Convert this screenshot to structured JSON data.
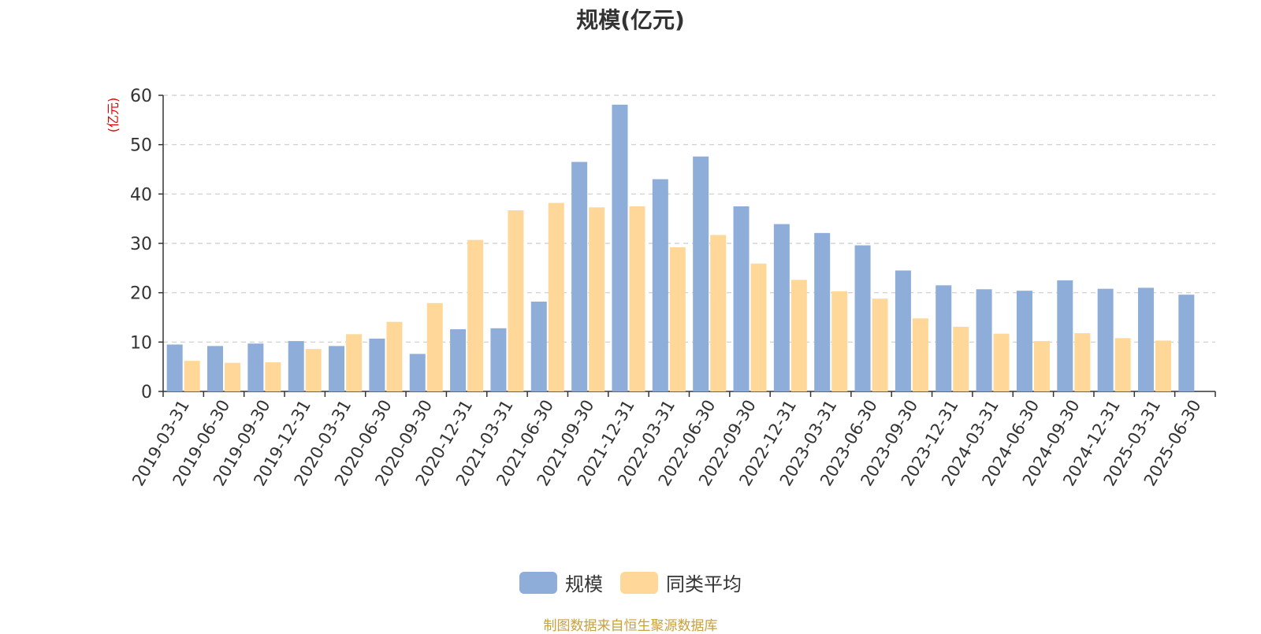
{
  "title": "规模(亿元)",
  "source_note": "制图数据来自恒生聚源数据库",
  "colors": {
    "scale": "#8eadd9",
    "peer_avg": "#ffd899",
    "axis": "#333333",
    "grid": "#cccccc",
    "unit_label": "#e00000"
  },
  "chart_data": {
    "type": "bar",
    "title": "规模(亿元)",
    "ylabel": "(亿元)",
    "xlabel": "",
    "ylim": [
      0,
      60
    ],
    "yticks": [
      0,
      10,
      20,
      30,
      40,
      50,
      60
    ],
    "grid": true,
    "legend_position": "bottom-center",
    "categories": [
      "2019-03-31",
      "2019-06-30",
      "2019-09-30",
      "2019-12-31",
      "2020-03-31",
      "2020-06-30",
      "2020-09-30",
      "2020-12-31",
      "2021-03-31",
      "2021-06-30",
      "2021-09-30",
      "2021-12-31",
      "2022-03-31",
      "2022-06-30",
      "2022-09-30",
      "2022-12-31",
      "2023-03-31",
      "2023-06-30",
      "2023-09-30",
      "2023-12-31",
      "2024-03-31",
      "2024-06-30",
      "2024-09-30",
      "2024-12-31",
      "2025-03-31",
      "2025-06-30"
    ],
    "series": [
      {
        "name": "规模",
        "color": "#8eadd9",
        "values": [
          9.5,
          9.2,
          9.7,
          10.2,
          9.2,
          10.7,
          7.6,
          12.6,
          12.8,
          18.2,
          46.5,
          58.1,
          43.0,
          47.6,
          37.5,
          33.9,
          32.1,
          29.6,
          24.5,
          21.5,
          20.7,
          20.4,
          22.5,
          20.8,
          21.0,
          19.6
        ]
      },
      {
        "name": "同类平均",
        "color": "#ffd899",
        "values": [
          6.2,
          5.8,
          5.9,
          8.6,
          11.6,
          14.1,
          17.9,
          30.7,
          36.7,
          38.2,
          37.3,
          37.5,
          29.2,
          31.7,
          25.9,
          22.6,
          20.3,
          18.8,
          14.8,
          13.1,
          11.7,
          10.2,
          11.8,
          10.8,
          10.3,
          null
        ]
      }
    ]
  }
}
